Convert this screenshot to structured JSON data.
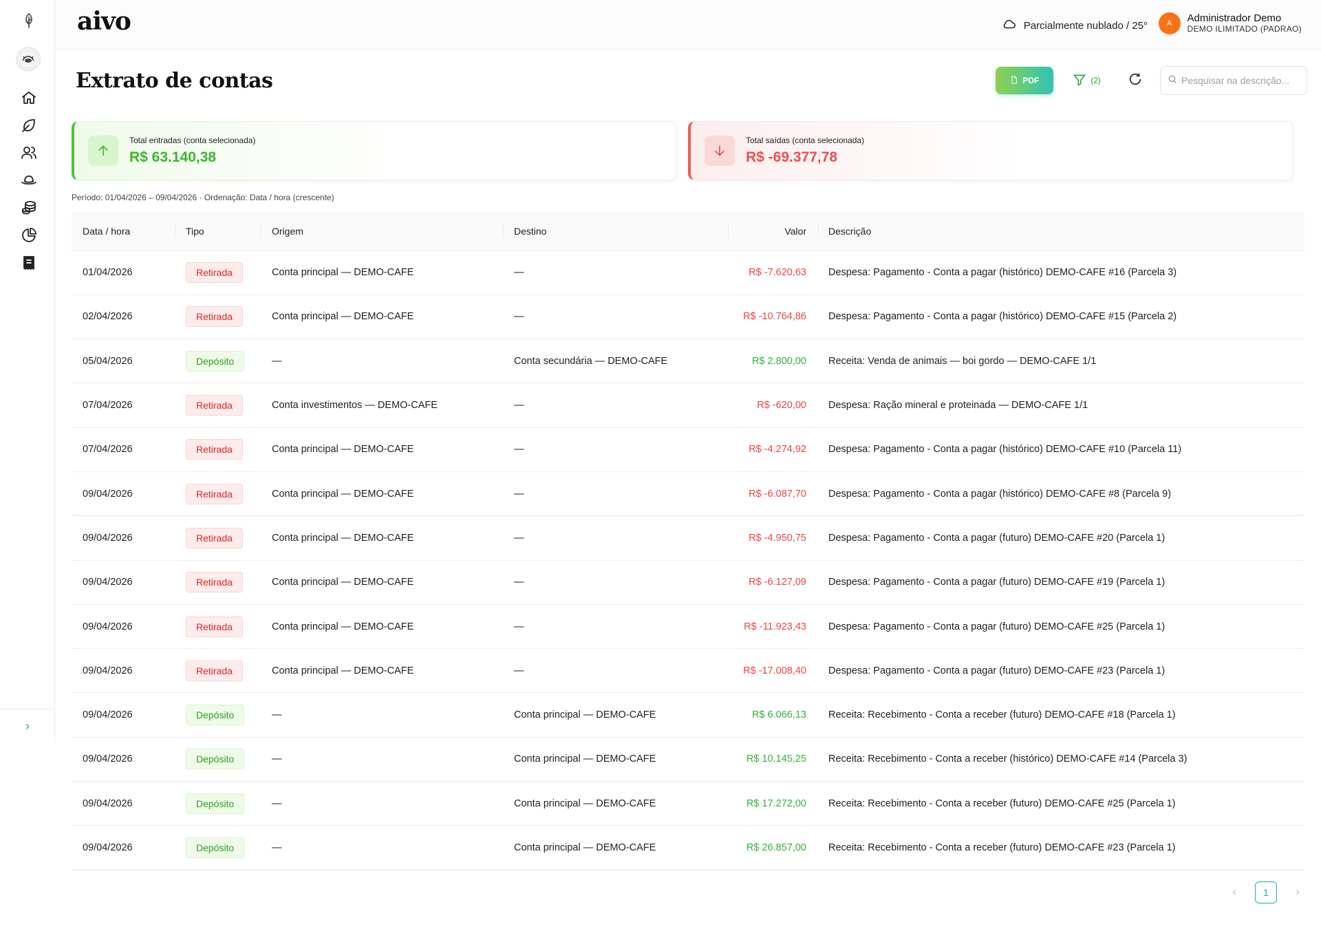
{
  "app": {
    "brand": "aivo"
  },
  "header": {
    "weather": "Parcialmente nublado / 25°",
    "user_initial": "A",
    "user_name": "Administrador Demo",
    "user_org": "DEMO ILIMITADO (PADRAO)"
  },
  "sidebar": {
    "items": [
      "home-icon",
      "leaf-icon",
      "users-icon",
      "hat-icon",
      "coins-icon",
      "pie-chart-icon",
      "receipt-icon"
    ]
  },
  "page": {
    "title": "Extrato de contas",
    "pdf_label": "PDF",
    "filter_count": "(2)",
    "search_placeholder": "Pesquisar na descrição..."
  },
  "summary": {
    "in_label": "Total entradas (conta selecionada)",
    "in_value": "R$ 63.140,38",
    "out_label": "Total saídas (conta selecionada)",
    "out_value": "R$ -69.377,78"
  },
  "period": "Período: 01/04/2026 – 09/04/2026 · Ordenação: Data / hora (crescente)",
  "table": {
    "columns": [
      "Data / hora",
      "Tipo",
      "Origem",
      "Destino",
      "Valor",
      "Descrição"
    ],
    "rows": [
      {
        "date": "01/04/2026",
        "type": "Retirada",
        "kind": "withdraw",
        "origin": "Conta principal — DEMO-CAFE",
        "dest": "—",
        "value": "R$ -7.620,63",
        "desc": "Despesa: Pagamento - Conta a pagar (histórico) DEMO-CAFE #16 (Parcela 3)"
      },
      {
        "date": "02/04/2026",
        "type": "Retirada",
        "kind": "withdraw",
        "origin": "Conta principal — DEMO-CAFE",
        "dest": "—",
        "value": "R$ -10.764,86",
        "desc": "Despesa: Pagamento - Conta a pagar (histórico) DEMO-CAFE #15 (Parcela 2)"
      },
      {
        "date": "05/04/2026",
        "type": "Depósito",
        "kind": "deposit",
        "origin": "—",
        "dest": "Conta secundária — DEMO-CAFE",
        "value": "R$ 2.800,00",
        "desc": "Receita: Venda de animais — boi gordo — DEMO-CAFE 1/1"
      },
      {
        "date": "07/04/2026",
        "type": "Retirada",
        "kind": "withdraw",
        "origin": "Conta investimentos — DEMO-CAFE",
        "dest": "—",
        "value": "R$ -620,00",
        "desc": "Despesa: Ração mineral e proteinada — DEMO-CAFE 1/1"
      },
      {
        "date": "07/04/2026",
        "type": "Retirada",
        "kind": "withdraw",
        "origin": "Conta principal — DEMO-CAFE",
        "dest": "—",
        "value": "R$ -4.274,92",
        "desc": "Despesa: Pagamento - Conta a pagar (histórico) DEMO-CAFE #10 (Parcela 11)"
      },
      {
        "date": "09/04/2026",
        "type": "Retirada",
        "kind": "withdraw",
        "origin": "Conta principal — DEMO-CAFE",
        "dest": "—",
        "value": "R$ -6.087,70",
        "desc": "Despesa: Pagamento - Conta a pagar (histórico) DEMO-CAFE #8 (Parcela 9)"
      },
      {
        "date": "09/04/2026",
        "type": "Retirada",
        "kind": "withdraw",
        "origin": "Conta principal — DEMO-CAFE",
        "dest": "—",
        "value": "R$ -4.950,75",
        "desc": "Despesa: Pagamento - Conta a pagar (futuro) DEMO-CAFE #20 (Parcela 1)"
      },
      {
        "date": "09/04/2026",
        "type": "Retirada",
        "kind": "withdraw",
        "origin": "Conta principal — DEMO-CAFE",
        "dest": "—",
        "value": "R$ -6.127,09",
        "desc": "Despesa: Pagamento - Conta a pagar (futuro) DEMO-CAFE #19 (Parcela 1)"
      },
      {
        "date": "09/04/2026",
        "type": "Retirada",
        "kind": "withdraw",
        "origin": "Conta principal — DEMO-CAFE",
        "dest": "—",
        "value": "R$ -11.923,43",
        "desc": "Despesa: Pagamento - Conta a pagar (futuro) DEMO-CAFE #25 (Parcela 1)"
      },
      {
        "date": "09/04/2026",
        "type": "Retirada",
        "kind": "withdraw",
        "origin": "Conta principal — DEMO-CAFE",
        "dest": "—",
        "value": "R$ -17.008,40",
        "desc": "Despesa: Pagamento - Conta a pagar (futuro) DEMO-CAFE #23 (Parcela 1)"
      },
      {
        "date": "09/04/2026",
        "type": "Depósito",
        "kind": "deposit",
        "origin": "—",
        "dest": "Conta principal — DEMO-CAFE",
        "value": "R$ 6.066,13",
        "desc": "Receita: Recebimento - Conta a receber (futuro) DEMO-CAFE #18 (Parcela 1)"
      },
      {
        "date": "09/04/2026",
        "type": "Depósito",
        "kind": "deposit",
        "origin": "—",
        "dest": "Conta principal — DEMO-CAFE",
        "value": "R$ 10.145,25",
        "desc": "Receita: Recebimento - Conta a receber (histórico) DEMO-CAFE #14 (Parcela 3)"
      },
      {
        "date": "09/04/2026",
        "type": "Depósito",
        "kind": "deposit",
        "origin": "—",
        "dest": "Conta principal — DEMO-CAFE",
        "value": "R$ 17.272,00",
        "desc": "Receita: Recebimento - Conta a receber (futuro) DEMO-CAFE #25 (Parcela 1)"
      },
      {
        "date": "09/04/2026",
        "type": "Depósito",
        "kind": "deposit",
        "origin": "—",
        "dest": "Conta principal — DEMO-CAFE",
        "value": "R$ 26.857,00",
        "desc": "Receita: Recebimento - Conta a receber (futuro) DEMO-CAFE #23 (Parcela 1)"
      }
    ]
  },
  "pagination": {
    "current": "1"
  },
  "colors": {
    "accent": "#12b5b0",
    "positive": "#34b23a",
    "negative": "#ef4444"
  }
}
